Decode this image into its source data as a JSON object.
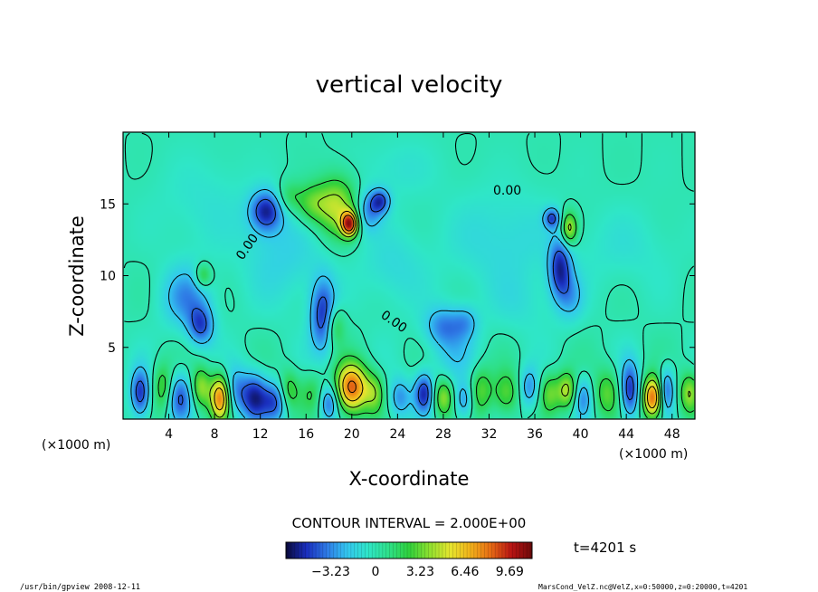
{
  "chart_data": {
    "type": "heatmap",
    "title": "vertical velocity",
    "xlabel": "X-coordinate",
    "ylabel": "Z-coordinate",
    "x_unit_left": "(×1000 m)",
    "x_unit_right": "(×1000 m)",
    "xlim": [
      0,
      50
    ],
    "ylim": [
      0,
      20
    ],
    "x_ticks": [
      4,
      8,
      12,
      16,
      20,
      24,
      28,
      32,
      36,
      40,
      44,
      48
    ],
    "y_ticks": [
      5,
      10,
      15
    ],
    "contour_interval_text": "CONTOUR INTERVAL = 2.000E+00",
    "zero_contour_label": "0.00",
    "time_text": "t=4201 s",
    "colorbar": {
      "ticks": [
        "−3.23",
        "0",
        "3.23",
        "6.46",
        "9.69"
      ],
      "tick_values": [
        -3.23,
        0,
        3.23,
        6.46,
        9.69
      ],
      "range": [
        -6.46,
        11.3
      ],
      "colors": [
        "#0a0a3c",
        "#1a2fbf",
        "#2f7be6",
        "#33c8f0",
        "#2fe6c8",
        "#2ee08a",
        "#2fd13c",
        "#8ee02f",
        "#e6e62f",
        "#f2b21a",
        "#e66a14",
        "#b81414",
        "#6e0a0a"
      ]
    },
    "background_color": "#3ce6a0",
    "features": [
      {
        "x": 12.5,
        "z": 14.5,
        "sx": 1.0,
        "sz": 1.0,
        "v": -5
      },
      {
        "x": 18.7,
        "z": 14.8,
        "sx": 1.2,
        "sz": 1.5,
        "v": 4.5
      },
      {
        "x": 19.8,
        "z": 13.6,
        "sx": 0.5,
        "sz": 0.6,
        "v": 9
      },
      {
        "x": 21.5,
        "z": 14.5,
        "sx": 0.8,
        "sz": 1.0,
        "v": -3
      },
      {
        "x": 16.5,
        "z": 15.0,
        "sx": 1.0,
        "sz": 1.0,
        "v": 3
      },
      {
        "x": 14.5,
        "z": 15.5,
        "sx": 0.8,
        "sz": 0.8,
        "v": 2
      },
      {
        "x": 22.5,
        "z": 15.2,
        "sx": 0.6,
        "sz": 0.6,
        "v": -4
      },
      {
        "x": 17.5,
        "z": 7.2,
        "sx": 0.8,
        "sz": 1.8,
        "v": -5
      },
      {
        "x": 18.5,
        "z": 6.5,
        "sx": 0.6,
        "sz": 1.0,
        "v": 3
      },
      {
        "x": 5.5,
        "z": 8.5,
        "sx": 1.5,
        "sz": 1.5,
        "v": -3
      },
      {
        "x": 6.8,
        "z": 6.5,
        "sx": 0.8,
        "sz": 1.0,
        "v": -4
      },
      {
        "x": 7.0,
        "z": 10.0,
        "sx": 0.5,
        "sz": 0.6,
        "v": 3
      },
      {
        "x": 38.2,
        "z": 10.5,
        "sx": 0.7,
        "sz": 1.5,
        "v": -5
      },
      {
        "x": 39.0,
        "z": 13.3,
        "sx": 0.5,
        "sz": 0.8,
        "v": 5
      },
      {
        "x": 37.5,
        "z": 14.0,
        "sx": 0.5,
        "sz": 0.5,
        "v": -4
      },
      {
        "x": 39.2,
        "z": 8.5,
        "sx": 0.8,
        "sz": 1.2,
        "v": -2
      },
      {
        "x": 28.0,
        "z": 6.5,
        "sx": 1.2,
        "sz": 1.0,
        "v": -3
      },
      {
        "x": 30.0,
        "z": 6.8,
        "sx": 0.8,
        "sz": 0.8,
        "v": -2
      },
      {
        "x": 29.0,
        "z": 4.5,
        "sx": 1.5,
        "sz": 1.5,
        "v": -1.5
      },
      {
        "x": 14.0,
        "z": 11.5,
        "sx": 2.5,
        "sz": 2.5,
        "v": -1.5
      },
      {
        "x": 23.5,
        "z": 10.5,
        "sx": 2.0,
        "sz": 2.0,
        "v": -1.2
      },
      {
        "x": 33.0,
        "z": 12.5,
        "sx": 3.5,
        "sz": 2.5,
        "v": -1.3
      },
      {
        "x": 7.0,
        "z": 15.0,
        "sx": 3.0,
        "sz": 2.5,
        "v": -0.8
      },
      {
        "x": 24.0,
        "z": 17.5,
        "sx": 2.5,
        "sz": 1.5,
        "v": -0.8
      },
      {
        "x": 44.0,
        "z": 12.0,
        "sx": 3.0,
        "sz": 2.0,
        "v": -0.8
      },
      {
        "x": 35.0,
        "z": 8.0,
        "sx": 2.0,
        "sz": 1.5,
        "v": -0.8
      },
      {
        "x": 1.5,
        "z": 1.8,
        "sx": 0.6,
        "sz": 1.2,
        "v": -5
      },
      {
        "x": 3.5,
        "z": 2.2,
        "sx": 0.6,
        "sz": 1.2,
        "v": 3
      },
      {
        "x": 5.0,
        "z": 1.5,
        "sx": 0.8,
        "sz": 1.2,
        "v": -4
      },
      {
        "x": 6.8,
        "z": 2.2,
        "sx": 0.6,
        "sz": 1.0,
        "v": 4
      },
      {
        "x": 8.5,
        "z": 1.5,
        "sx": 0.6,
        "sz": 1.1,
        "v": 8
      },
      {
        "x": 9.8,
        "z": 2.0,
        "sx": 0.8,
        "sz": 1.2,
        "v": -3
      },
      {
        "x": 11.5,
        "z": 1.5,
        "sx": 0.8,
        "sz": 1.2,
        "v": -5
      },
      {
        "x": 13.3,
        "z": 1.2,
        "sx": 0.8,
        "sz": 1.0,
        "v": -4
      },
      {
        "x": 14.5,
        "z": 2.0,
        "sx": 0.6,
        "sz": 1.0,
        "v": 3
      },
      {
        "x": 16.5,
        "z": 1.8,
        "sx": 0.8,
        "sz": 1.0,
        "v": 2
      },
      {
        "x": 18.0,
        "z": 1.2,
        "sx": 0.6,
        "sz": 0.9,
        "v": -4
      },
      {
        "x": 20.0,
        "z": 2.2,
        "sx": 1.0,
        "sz": 1.2,
        "v": 8.5
      },
      {
        "x": 22.0,
        "z": 1.8,
        "sx": 0.6,
        "sz": 1.0,
        "v": 3
      },
      {
        "x": 24.2,
        "z": 1.5,
        "sx": 0.7,
        "sz": 1.0,
        "v": -3
      },
      {
        "x": 26.3,
        "z": 1.8,
        "sx": 0.6,
        "sz": 1.0,
        "v": -5
      },
      {
        "x": 28.0,
        "z": 1.5,
        "sx": 0.6,
        "sz": 0.9,
        "v": 4
      },
      {
        "x": 29.8,
        "z": 1.3,
        "sx": 0.6,
        "sz": 0.9,
        "v": -3
      },
      {
        "x": 31.3,
        "z": 2.0,
        "sx": 0.7,
        "sz": 1.2,
        "v": 3
      },
      {
        "x": 33.5,
        "z": 1.8,
        "sx": 0.8,
        "sz": 1.1,
        "v": 3
      },
      {
        "x": 35.5,
        "z": 2.2,
        "sx": 0.6,
        "sz": 1.0,
        "v": -3
      },
      {
        "x": 37.3,
        "z": 1.8,
        "sx": 0.6,
        "sz": 1.0,
        "v": 3
      },
      {
        "x": 38.8,
        "z": 2.0,
        "sx": 0.6,
        "sz": 0.9,
        "v": 4.5
      },
      {
        "x": 40.2,
        "z": 1.5,
        "sx": 0.6,
        "sz": 1.0,
        "v": -3
      },
      {
        "x": 42.3,
        "z": 1.8,
        "sx": 0.8,
        "sz": 1.2,
        "v": 3
      },
      {
        "x": 44.3,
        "z": 2.0,
        "sx": 0.6,
        "sz": 1.4,
        "v": -5
      },
      {
        "x": 46.3,
        "z": 1.5,
        "sx": 0.6,
        "sz": 1.0,
        "v": 8.5
      },
      {
        "x": 47.5,
        "z": 2.0,
        "sx": 0.5,
        "sz": 1.1,
        "v": -4
      },
      {
        "x": 49.5,
        "z": 1.8,
        "sx": 0.6,
        "sz": 1.0,
        "v": 4
      }
    ]
  },
  "footer": {
    "left_text": "/usr/bin/gpview   2008-12-11",
    "right_text": "MarsCond_VelZ.nc@VelZ,x=0:50000,z=0:20000,t=4201"
  }
}
